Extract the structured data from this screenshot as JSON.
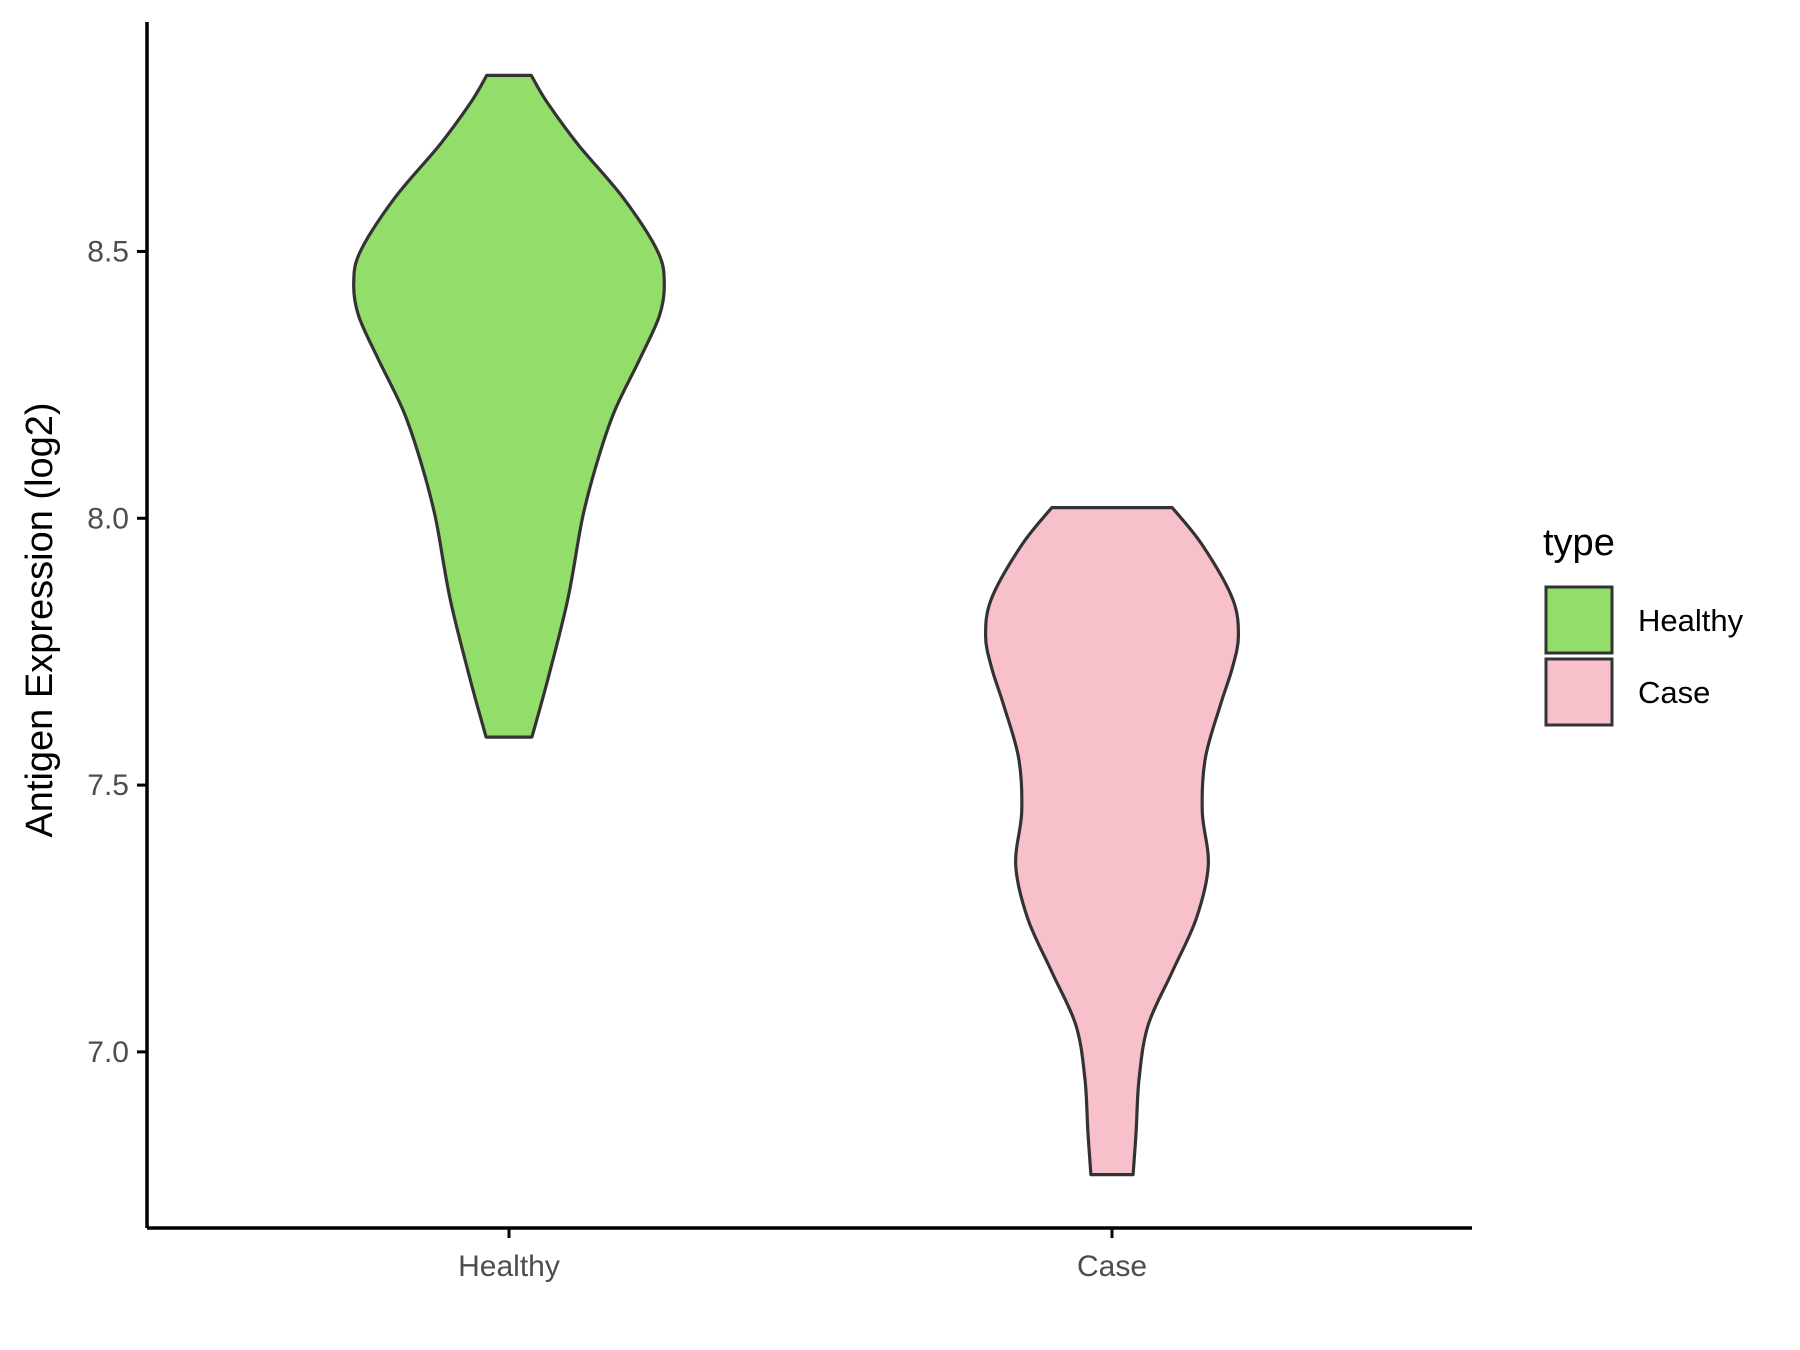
{
  "chart_data": {
    "type": "violin",
    "title": "",
    "xlabel": "",
    "ylabel": "Antigen Expression (log2)",
    "ylim": [
      6.67,
      8.93
    ],
    "yticks": [
      7.0,
      7.5,
      8.0,
      8.5
    ],
    "ytick_labels": [
      "7.0",
      "7.5",
      "8.0",
      "8.5"
    ],
    "categories": [
      "Healthy",
      "Case"
    ],
    "grid": false,
    "legend": {
      "title": "type",
      "position": "right",
      "entries": [
        "Healthy",
        "Case"
      ]
    },
    "series": [
      {
        "name": "Healthy",
        "color": "#93DD6B",
        "min": 7.59,
        "max": 8.83,
        "density_profile": [
          {
            "y": 7.59,
            "half_width": 0.038
          },
          {
            "y": 7.7,
            "half_width": 0.065
          },
          {
            "y": 7.85,
            "half_width": 0.098
          },
          {
            "y": 8.0,
            "half_width": 0.122
          },
          {
            "y": 8.1,
            "half_width": 0.145
          },
          {
            "y": 8.2,
            "half_width": 0.175
          },
          {
            "y": 8.3,
            "half_width": 0.218
          },
          {
            "y": 8.38,
            "half_width": 0.25
          },
          {
            "y": 8.44,
            "half_width": 0.258
          },
          {
            "y": 8.5,
            "half_width": 0.247
          },
          {
            "y": 8.6,
            "half_width": 0.19
          },
          {
            "y": 8.7,
            "half_width": 0.115
          },
          {
            "y": 8.78,
            "half_width": 0.063
          },
          {
            "y": 8.83,
            "half_width": 0.037
          }
        ]
      },
      {
        "name": "Case",
        "color": "#F8C0CB",
        "min": 6.77,
        "max": 8.02,
        "density_profile": [
          {
            "y": 6.77,
            "half_width": 0.035
          },
          {
            "y": 6.85,
            "half_width": 0.04
          },
          {
            "y": 6.95,
            "half_width": 0.045
          },
          {
            "y": 7.05,
            "half_width": 0.06
          },
          {
            "y": 7.15,
            "half_width": 0.1
          },
          {
            "y": 7.25,
            "half_width": 0.14
          },
          {
            "y": 7.35,
            "half_width": 0.16
          },
          {
            "y": 7.45,
            "half_width": 0.15
          },
          {
            "y": 7.55,
            "half_width": 0.155
          },
          {
            "y": 7.65,
            "half_width": 0.18
          },
          {
            "y": 7.72,
            "half_width": 0.2
          },
          {
            "y": 7.78,
            "half_width": 0.21
          },
          {
            "y": 7.85,
            "half_width": 0.2
          },
          {
            "y": 7.95,
            "half_width": 0.15
          },
          {
            "y": 8.02,
            "half_width": 0.1
          }
        ]
      }
    ]
  }
}
